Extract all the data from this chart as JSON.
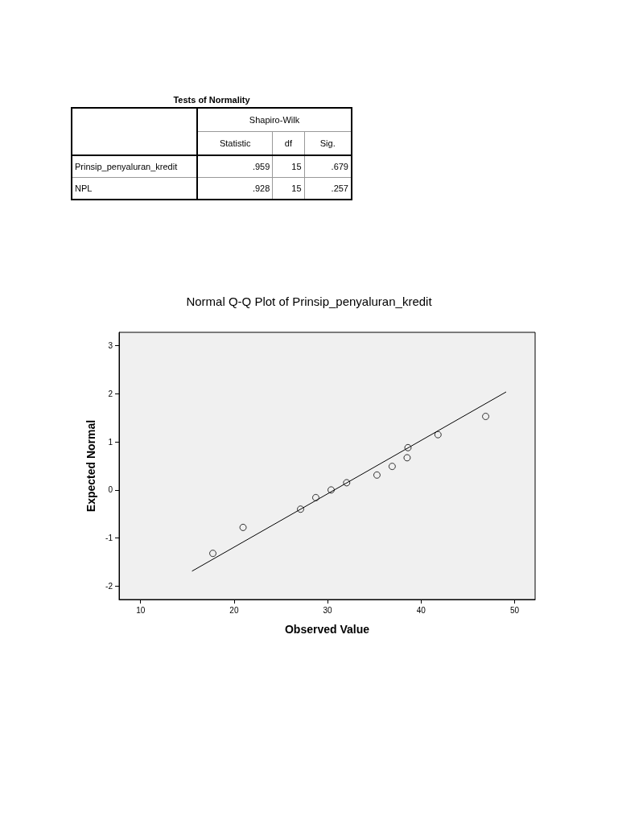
{
  "chart_data": [
    {
      "type": "other",
      "title": "Tests of Normality",
      "annotations": [
        "Shapiro-Wilk",
        "Statistic",
        "df",
        "Sig.",
        "Prinsip_penyaluran_kredit",
        ".959",
        "15",
        ".679",
        "NPL",
        ".928",
        "15",
        ".257"
      ]
    },
    {
      "type": "scatter",
      "title": "Normal Q-Q Plot of Prinsip_penyaluran_kredit",
      "xlabel": "Observed Value",
      "ylabel": "Expected Normal",
      "xlim": [
        7.7,
        52.2
      ],
      "ylim": [
        -2.28,
        3.28
      ],
      "xticks": [
        10,
        20,
        30,
        40,
        50
      ],
      "yticks": [
        -2,
        -1,
        0,
        1,
        2,
        3
      ],
      "series": [
        {
          "type": "scatter",
          "marker": "circle",
          "color": "#000000",
          "x": [
            17.73,
            20.96,
            27.11,
            28.74,
            30.38,
            32.04,
            35.28,
            36.91,
            38.51,
            38.6,
            41.81,
            46.91
          ],
          "values": [
            -1.32,
            -0.78,
            -0.4,
            -0.16,
            0.0,
            0.15,
            0.31,
            0.49,
            0.67,
            0.88,
            1.15,
            1.53
          ]
        },
        {
          "type": "line",
          "marker": "none",
          "color": "#000000",
          "x": [
            15.5,
            49.1
          ],
          "values": [
            -1.69,
            2.04
          ]
        }
      ]
    }
  ]
}
